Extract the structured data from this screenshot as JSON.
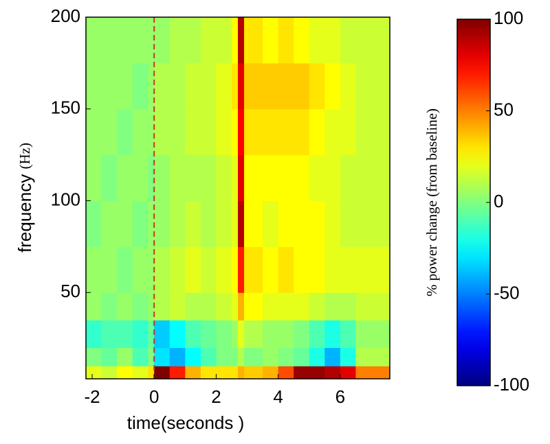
{
  "chart_data": {
    "type": "heatmap",
    "xlabel": "time(seconds )",
    "ylabel": "frequency",
    "ylabel_unit": "(Hz)",
    "colorbar_label": "% power change (from baseline)",
    "xlim": [
      -2.2,
      7.6
    ],
    "xticks": [
      -2,
      0,
      2,
      4,
      6
    ],
    "ylim": [
      3,
      200
    ],
    "yticks": [
      50,
      100,
      150,
      200
    ],
    "clim": [
      -100,
      100
    ],
    "cticks": [
      -100,
      -50,
      0,
      50,
      100
    ],
    "colormap": "jet",
    "event_line": 0,
    "event_line_color": "#c0392b",
    "x_edges": [
      -2.2,
      -1.7,
      -1.2,
      -0.7,
      -0.2,
      0,
      0.5,
      1,
      1.5,
      2,
      2.5,
      2.7,
      2.9,
      3.5,
      4,
      4.5,
      5,
      5.5,
      6,
      6.5,
      7.6
    ],
    "y_edges": [
      3,
      10,
      20,
      35,
      50,
      75,
      100,
      125,
      150,
      175,
      200
    ],
    "z": [
      [
        20,
        15,
        25,
        20,
        30,
        100,
        70,
        40,
        30,
        30,
        30,
        40,
        35,
        40,
        60,
        95,
        95,
        90,
        80,
        50
      ],
      [
        0,
        -5,
        5,
        -10,
        0,
        -30,
        -40,
        -25,
        -10,
        0,
        0,
        10,
        0,
        5,
        0,
        -5,
        -20,
        -40,
        -20,
        10
      ],
      [
        -15,
        -10,
        -10,
        -15,
        -5,
        -35,
        -25,
        -10,
        -5,
        0,
        5,
        20,
        10,
        5,
        5,
        0,
        -10,
        -20,
        -10,
        5
      ],
      [
        5,
        0,
        5,
        0,
        5,
        10,
        15,
        10,
        10,
        15,
        20,
        40,
        25,
        20,
        20,
        20,
        15,
        10,
        10,
        15
      ],
      [
        5,
        5,
        0,
        5,
        5,
        10,
        15,
        20,
        15,
        20,
        25,
        70,
        30,
        25,
        30,
        25,
        25,
        20,
        20,
        20
      ],
      [
        0,
        5,
        5,
        0,
        5,
        5,
        10,
        15,
        10,
        15,
        20,
        90,
        25,
        20,
        25,
        25,
        25,
        20,
        15,
        15
      ],
      [
        5,
        0,
        5,
        5,
        0,
        5,
        10,
        10,
        10,
        15,
        20,
        80,
        25,
        25,
        25,
        25,
        20,
        20,
        15,
        15
      ],
      [
        5,
        5,
        0,
        5,
        5,
        10,
        10,
        15,
        15,
        20,
        25,
        75,
        30,
        30,
        30,
        30,
        25,
        20,
        20,
        15
      ],
      [
        5,
        5,
        5,
        0,
        5,
        10,
        10,
        15,
        15,
        20,
        30,
        80,
        35,
        35,
        35,
        35,
        30,
        25,
        20,
        15
      ],
      [
        5,
        5,
        5,
        5,
        5,
        5,
        10,
        10,
        15,
        15,
        25,
        90,
        30,
        25,
        30,
        25,
        20,
        20,
        15,
        15
      ]
    ]
  }
}
